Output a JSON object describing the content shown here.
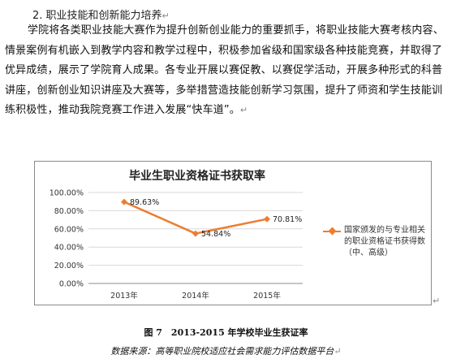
{
  "heading": "2. 职业技能和创新能力培养",
  "paragraph": "学院将各类职业技能大赛作为提升创新创业能力的重要抓手，将职业技能大赛考核内容、情景案例有机嵌入到教学内容和教学过程中，积极参加省级和国家级各种技能竞赛，并取得了优异成绩，展示了学院育人成果。各专业开展以赛促教、以赛促学活动，开展多种形式的科普讲座，创新创业知识讲座及大赛等，多举措营造技能创新学习氛围，提升了师资和学生技能训练积极性，推动我院竞赛工作进入发展“快车道”。",
  "paragraph_mark": "↵",
  "chart_data": {
    "type": "line",
    "title": "毕业生职业资格证书获取率",
    "categories": [
      "2013年",
      "2014年",
      "2015年"
    ],
    "series": [
      {
        "name": "国家颁发的与专业相关的职业资格证书获得数（中、高级）",
        "values": [
          89.63,
          54.84,
          70.81
        ],
        "labels": [
          "89.63%",
          "54.84%",
          "70.81%"
        ],
        "color": "#ED7D31"
      }
    ],
    "ylim": [
      0,
      100
    ],
    "yticks": [
      "0.00%",
      "20.00%",
      "40.00%",
      "60.00%",
      "80.00%",
      "100.00%"
    ],
    "grid": true,
    "legend_position": "right"
  },
  "figure_caption": "图 7　2013-2015 年学校毕业生获证率",
  "source_note": "数据来源：高等职业院校适应社会需求能力评估数据平台"
}
